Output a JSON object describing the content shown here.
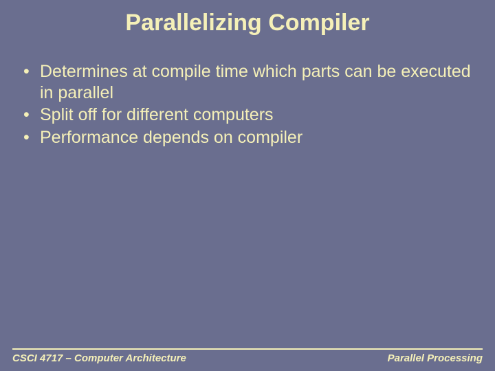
{
  "slide": {
    "background_color": "#6a6e8f",
    "title": {
      "text": "Parallelizing Compiler",
      "color": "#f5f0b8",
      "fontsize": 34
    },
    "bullets": [
      "Determines at compile time which parts can be executed in parallel",
      "Split off for different computers",
      "Performance depends on compiler"
    ],
    "bullet_style": {
      "color": "#f5f0b8",
      "fontsize": 25,
      "line_height": 1.22
    },
    "footer": {
      "left": "CSCI 4717 – Computer Architecture",
      "right": "Parallel Processing",
      "color": "#f5f0b8",
      "rule_color": "#f5f0b8",
      "fontsize": 15
    }
  }
}
